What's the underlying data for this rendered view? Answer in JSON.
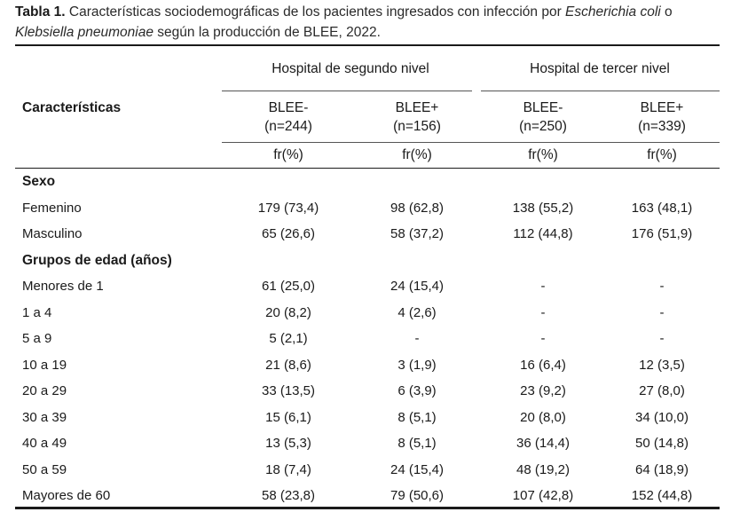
{
  "caption": {
    "label": "Tabla 1.",
    "part1": " Características sociodemográficas de los pacientes ingresados con infección por ",
    "italic1": "Escherichia coli",
    "part2": " o",
    "italic2": "Klebsiella pneumoniae",
    "part3": " según la producción de BLEE, 2022."
  },
  "header": {
    "row_header": "Características",
    "groups": [
      "Hospital de segundo nivel",
      "Hospital de tercer nivel"
    ],
    "columns": [
      {
        "label": "BLEE-",
        "n": "(n=244)",
        "unit": "fr(%)"
      },
      {
        "label": "BLEE+",
        "n": "(n=156)",
        "unit": "fr(%)"
      },
      {
        "label": "BLEE-",
        "n": "(n=250)",
        "unit": "fr(%)"
      },
      {
        "label": "BLEE+",
        "n": "(n=339)",
        "unit": "fr(%)"
      }
    ]
  },
  "rows": [
    {
      "label": "Sexo",
      "section": true,
      "values": [
        "",
        "",
        "",
        ""
      ]
    },
    {
      "label": "Femenino",
      "section": false,
      "values": [
        "179 (73,4)",
        "98 (62,8)",
        "138 (55,2)",
        "163 (48,1)"
      ]
    },
    {
      "label": "Masculino",
      "section": false,
      "values": [
        "65 (26,6)",
        "58 (37,2)",
        "112 (44,8)",
        "176 (51,9)"
      ]
    },
    {
      "label": "Grupos de edad (años)",
      "section": true,
      "values": [
        "",
        "",
        "",
        ""
      ]
    },
    {
      "label": "Menores de 1",
      "section": false,
      "values": [
        "61 (25,0)",
        "24 (15,4)",
        "-",
        "-"
      ]
    },
    {
      "label": "1 a 4",
      "section": false,
      "values": [
        "20 (8,2)",
        "4 (2,6)",
        "-",
        "-"
      ]
    },
    {
      "label": "5 a 9",
      "section": false,
      "values": [
        "5 (2,1)",
        "-",
        "-",
        "-"
      ]
    },
    {
      "label": "10 a 19",
      "section": false,
      "values": [
        "21 (8,6)",
        "3 (1,9)",
        "16 (6,4)",
        "12 (3,5)"
      ]
    },
    {
      "label": "20 a 29",
      "section": false,
      "values": [
        "33 (13,5)",
        "6 (3,9)",
        "23 (9,2)",
        "27 (8,0)"
      ]
    },
    {
      "label": "30 a 39",
      "section": false,
      "values": [
        "15 (6,1)",
        "8 (5,1)",
        "20 (8,0)",
        "34 (10,0)"
      ]
    },
    {
      "label": "40 a 49",
      "section": false,
      "values": [
        "13 (5,3)",
        "8 (5,1)",
        "36 (14,4)",
        "50 (14,8)"
      ]
    },
    {
      "label": "50 a 59",
      "section": false,
      "values": [
        "18 (7,4)",
        "24 (15,4)",
        "48 (19,2)",
        "64 (18,9)"
      ]
    },
    {
      "label": "Mayores de 60",
      "section": false,
      "values": [
        "58 (23,8)",
        "79 (50,6)",
        "107 (42,8)",
        "152 (44,8)"
      ]
    }
  ]
}
